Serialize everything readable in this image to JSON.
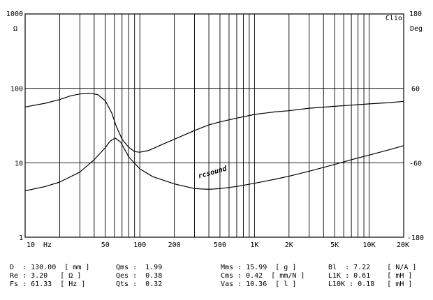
{
  "chart_data": {
    "type": "line",
    "x_scale": "log",
    "y_scale": "log",
    "xlim": [
      10,
      20000
    ],
    "ylim": [
      1,
      1000
    ],
    "y2lim": [
      -180,
      180
    ],
    "grid": true,
    "brand_label": "Clio",
    "watermark": "rcsound",
    "y_unit": "Ω",
    "y2_unit": "Deg",
    "x_unit": "Hz",
    "x_ticks": [
      {
        "value": 10,
        "label": "10"
      },
      {
        "value": 50,
        "label": "50"
      },
      {
        "value": 100,
        "label": "100"
      },
      {
        "value": 200,
        "label": "200"
      },
      {
        "value": 500,
        "label": "500"
      },
      {
        "value": 1000,
        "label": "1K"
      },
      {
        "value": 2000,
        "label": "2K"
      },
      {
        "value": 5000,
        "label": "5K"
      },
      {
        "value": 10000,
        "label": "10K"
      },
      {
        "value": 20000,
        "label": "20K"
      }
    ],
    "y_ticks": [
      {
        "value": 1000,
        "label": "1000"
      },
      {
        "value": 100,
        "label": "100"
      },
      {
        "value": 10,
        "label": "10"
      },
      {
        "value": 1,
        "label": "1"
      }
    ],
    "y2_ticks": [
      {
        "value": 180,
        "label": "180"
      },
      {
        "value": 60,
        "label": "60"
      },
      {
        "value": -60,
        "label": "-60"
      },
      {
        "value": -180,
        "label": "-180"
      }
    ],
    "series": [
      {
        "axis": "left",
        "points": [
          [
            10,
            4.2
          ],
          [
            15,
            4.8
          ],
          [
            20,
            5.5
          ],
          [
            30,
            7.5
          ],
          [
            40,
            11
          ],
          [
            50,
            16
          ],
          [
            55,
            19.5
          ],
          [
            61,
            21.5
          ],
          [
            68,
            19
          ],
          [
            80,
            12
          ],
          [
            100,
            8.3
          ],
          [
            130,
            6.5
          ],
          [
            200,
            5.2
          ],
          [
            300,
            4.5
          ],
          [
            400,
            4.4
          ],
          [
            500,
            4.5
          ],
          [
            700,
            4.8
          ],
          [
            1000,
            5.3
          ],
          [
            1500,
            6.0
          ],
          [
            2000,
            6.6
          ],
          [
            3000,
            7.7
          ],
          [
            5000,
            9.5
          ],
          [
            7000,
            11.0
          ],
          [
            10000,
            12.7
          ],
          [
            15000,
            15
          ],
          [
            20000,
            17
          ]
        ]
      },
      {
        "axis": "right",
        "points": [
          [
            10,
            30
          ],
          [
            15,
            36
          ],
          [
            20,
            42
          ],
          [
            25,
            48
          ],
          [
            30,
            51
          ],
          [
            37,
            52
          ],
          [
            43,
            50
          ],
          [
            50,
            40
          ],
          [
            57,
            20
          ],
          [
            62,
            0
          ],
          [
            70,
            -22
          ],
          [
            80,
            -35
          ],
          [
            90,
            -42
          ],
          [
            100,
            -43
          ],
          [
            120,
            -40
          ],
          [
            150,
            -32
          ],
          [
            200,
            -22
          ],
          [
            300,
            -8
          ],
          [
            400,
            1
          ],
          [
            500,
            6
          ],
          [
            700,
            12
          ],
          [
            1000,
            18
          ],
          [
            1500,
            22
          ],
          [
            2000,
            24
          ],
          [
            3000,
            28
          ],
          [
            5000,
            31
          ],
          [
            7000,
            33
          ],
          [
            10000,
            35
          ],
          [
            15000,
            37
          ],
          [
            20000,
            39
          ]
        ]
      }
    ]
  },
  "params": [
    {
      "id": "p-d",
      "text": "D  : 130.00  [ mm ]"
    },
    {
      "id": "p-re",
      "text": "Re : 3.20   [ Ω ]"
    },
    {
      "id": "p-fs",
      "text": "Fs : 61.33  [ Hz ]"
    },
    {
      "id": "p-qms",
      "text": "Qms :  1.99"
    },
    {
      "id": "p-qes",
      "text": "Qes :  0.38"
    },
    {
      "id": "p-qts",
      "text": "Qts :  0.32"
    },
    {
      "id": "p-mms",
      "text": "Mms : 15.99  [ g ]"
    },
    {
      "id": "p-cms",
      "text": "Cms : 0.42  [ mm/N ]"
    },
    {
      "id": "p-vas",
      "text": "Vas : 10.36  [ l ]"
    },
    {
      "id": "p-bl",
      "text": "Bl  : 7.22    [ N/A ]"
    },
    {
      "id": "p-l1k",
      "text": "L1K : 0.61    [ mH ]"
    },
    {
      "id": "p-l10k",
      "text": "L10K : 0.18   [ mH ]"
    }
  ]
}
